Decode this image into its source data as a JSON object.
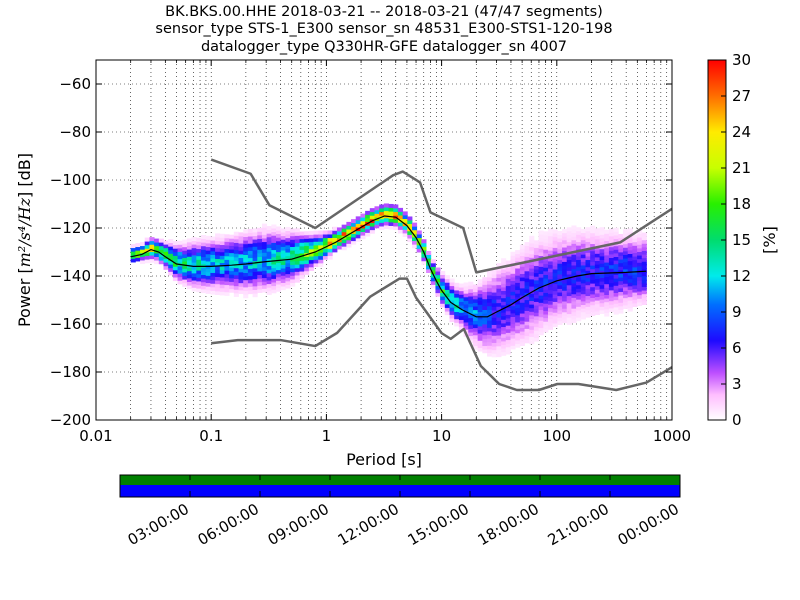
{
  "chart_data": {
    "type": "heatmap",
    "title_lines": [
      "BK.BKS.00.HHE   2018-03-21 -- 2018-03-21  (47/47 segments)",
      "sensor_type STS-1_E300 sensor_sn 48531_E300-STS1-120-198",
      "datalogger_type Q330HR-GFE datalogger_sn 4007"
    ],
    "xlabel": "Period [s]",
    "ylabel_prefix": "Power [",
    "ylabel_math": "m²/s⁴/Hz",
    "ylabel_suffix": "] [dB]",
    "x_scale": "log",
    "xlim": [
      0.01,
      1000
    ],
    "ylim": [
      -200,
      -50
    ],
    "x_ticks": [
      {
        "value": 0.01,
        "label": "0.01"
      },
      {
        "value": 0.1,
        "label": "0.1"
      },
      {
        "value": 1,
        "label": "1"
      },
      {
        "value": 10,
        "label": "10"
      },
      {
        "value": 100,
        "label": "100"
      },
      {
        "value": 1000,
        "label": "1000"
      }
    ],
    "y_ticks": [
      {
        "value": -60,
        "label": "−60"
      },
      {
        "value": -80,
        "label": "−80"
      },
      {
        "value": -100,
        "label": "−100"
      },
      {
        "value": -120,
        "label": "−120"
      },
      {
        "value": -140,
        "label": "−140"
      },
      {
        "value": -160,
        "label": "−160"
      },
      {
        "value": -180,
        "label": "−180"
      },
      {
        "value": -200,
        "label": "−200"
      }
    ],
    "grid": "dotted",
    "colorbar": {
      "label": "[%]",
      "range": [
        0,
        30
      ],
      "ticks": [
        {
          "value": 0,
          "label": "0"
        },
        {
          "value": 3,
          "label": "3"
        },
        {
          "value": 6,
          "label": "6"
        },
        {
          "value": 9,
          "label": "9"
        },
        {
          "value": 12,
          "label": "12"
        },
        {
          "value": 15,
          "label": "15"
        },
        {
          "value": 18,
          "label": "18"
        },
        {
          "value": 21,
          "label": "21"
        },
        {
          "value": 24,
          "label": "24"
        },
        {
          "value": 27,
          "label": "27"
        },
        {
          "value": 30,
          "label": "30"
        }
      ],
      "colormap": "pqlx"
    },
    "noise_models": [
      {
        "name": "",
        "color": "#666666",
        "points": [
          [
            0.1,
            -91.5
          ],
          [
            0.22,
            -97.4
          ],
          [
            0.32,
            -110.5
          ],
          [
            0.8,
            -120
          ],
          [
            3.8,
            -98
          ],
          [
            4.6,
            -96.5
          ],
          [
            6.5,
            -101
          ],
          [
            8,
            -113.5
          ],
          [
            15.4,
            -120
          ],
          [
            20,
            -138.5
          ],
          [
            354.8,
            -126
          ],
          [
            1000,
            -112
          ]
        ]
      },
      {
        "name": "",
        "color": "#666666",
        "points": [
          [
            0.1,
            -168
          ],
          [
            0.17,
            -166.7
          ],
          [
            0.4,
            -166.7
          ],
          [
            0.8,
            -169.2
          ],
          [
            1.24,
            -163.7
          ],
          [
            2.4,
            -148.6
          ],
          [
            4.3,
            -141.1
          ],
          [
            5,
            -141.1
          ],
          [
            6,
            -149
          ],
          [
            10,
            -163.8
          ],
          [
            12,
            -166.2
          ],
          [
            15.6,
            -162.1
          ],
          [
            21.9,
            -177.5
          ],
          [
            31.6,
            -185
          ],
          [
            45,
            -187.5
          ],
          [
            70,
            -187.5
          ],
          [
            101,
            -185
          ],
          [
            154,
            -185
          ],
          [
            328,
            -187.5
          ],
          [
            600,
            -184.4
          ],
          [
            1000,
            -178
          ]
        ]
      }
    ],
    "mean_curve": {
      "color": "#000000",
      "points": [
        [
          0.02,
          -132
        ],
        [
          0.025,
          -131
        ],
        [
          0.03,
          -129
        ],
        [
          0.035,
          -130
        ],
        [
          0.04,
          -132
        ],
        [
          0.05,
          -135
        ],
        [
          0.07,
          -136
        ],
        [
          0.1,
          -136
        ],
        [
          0.15,
          -135.5
        ],
        [
          0.2,
          -135
        ],
        [
          0.3,
          -134
        ],
        [
          0.5,
          -133
        ],
        [
          0.8,
          -130
        ],
        [
          1.2,
          -126
        ],
        [
          1.8,
          -121
        ],
        [
          2.5,
          -117
        ],
        [
          3.2,
          -115
        ],
        [
          4,
          -115.5
        ],
        [
          5,
          -119
        ],
        [
          6,
          -124
        ],
        [
          7,
          -130
        ],
        [
          8,
          -137
        ],
        [
          9,
          -142
        ],
        [
          10,
          -146
        ],
        [
          12,
          -151
        ],
        [
          15,
          -154
        ],
        [
          20,
          -157
        ],
        [
          25,
          -157
        ],
        [
          30,
          -155
        ],
        [
          40,
          -152
        ],
        [
          50,
          -149
        ],
        [
          70,
          -145
        ],
        [
          100,
          -142
        ],
        [
          150,
          -140
        ],
        [
          200,
          -139
        ],
        [
          400,
          -138.5
        ],
        [
          600,
          -138
        ]
      ]
    },
    "histogram_ridge": {
      "x": [
        0.02,
        0.025,
        0.03,
        0.035,
        0.04,
        0.05,
        0.07,
        0.1,
        0.15,
        0.2,
        0.3,
        0.5,
        0.8,
        1.2,
        1.8,
        2.5,
        3.2,
        4,
        5,
        6,
        7,
        8,
        9,
        10,
        12,
        15,
        20,
        25,
        30,
        40,
        50,
        70,
        100,
        150,
        200,
        400,
        600
      ],
      "center_db": [
        -132,
        -131,
        -129,
        -130,
        -132,
        -135,
        -136,
        -136,
        -135.5,
        -135,
        -134,
        -133,
        -130,
        -126,
        -121,
        -117,
        -115,
        -115.5,
        -119,
        -124,
        -130,
        -137,
        -142,
        -146,
        -151,
        -154,
        -157,
        -157,
        -155,
        -152,
        -149,
        -145,
        -142,
        -140,
        -139,
        -138.5,
        -138
      ],
      "spread_db": [
        1.5,
        1.5,
        2,
        2,
        2.5,
        3.5,
        4.5,
        5,
        5.5,
        6,
        6,
        5,
        3,
        2,
        2,
        2,
        2,
        2,
        2,
        2,
        2,
        2,
        2.5,
        3,
        3.5,
        4,
        6,
        8,
        9,
        9.5,
        10,
        10,
        9.5,
        9,
        8.5,
        7.5,
        7
      ],
      "peak_percent": [
        21,
        20,
        22,
        20,
        18,
        15,
        13,
        12,
        11,
        11,
        12,
        14,
        20,
        25,
        26,
        27,
        26,
        25,
        24,
        23,
        22,
        20,
        18,
        16,
        14,
        12,
        10,
        8,
        7,
        7,
        7,
        7,
        7,
        7,
        7,
        8,
        8
      ]
    }
  },
  "data_availability": {
    "time_ticks": [
      "03:00:00",
      "06:00:00",
      "09:00:00",
      "12:00:00",
      "15:00:00",
      "18:00:00",
      "21:00:00",
      "00:00:00"
    ],
    "coverage_color": "#0000ff",
    "top_strip_color": "#008000",
    "coverage_fraction": 1.0
  }
}
